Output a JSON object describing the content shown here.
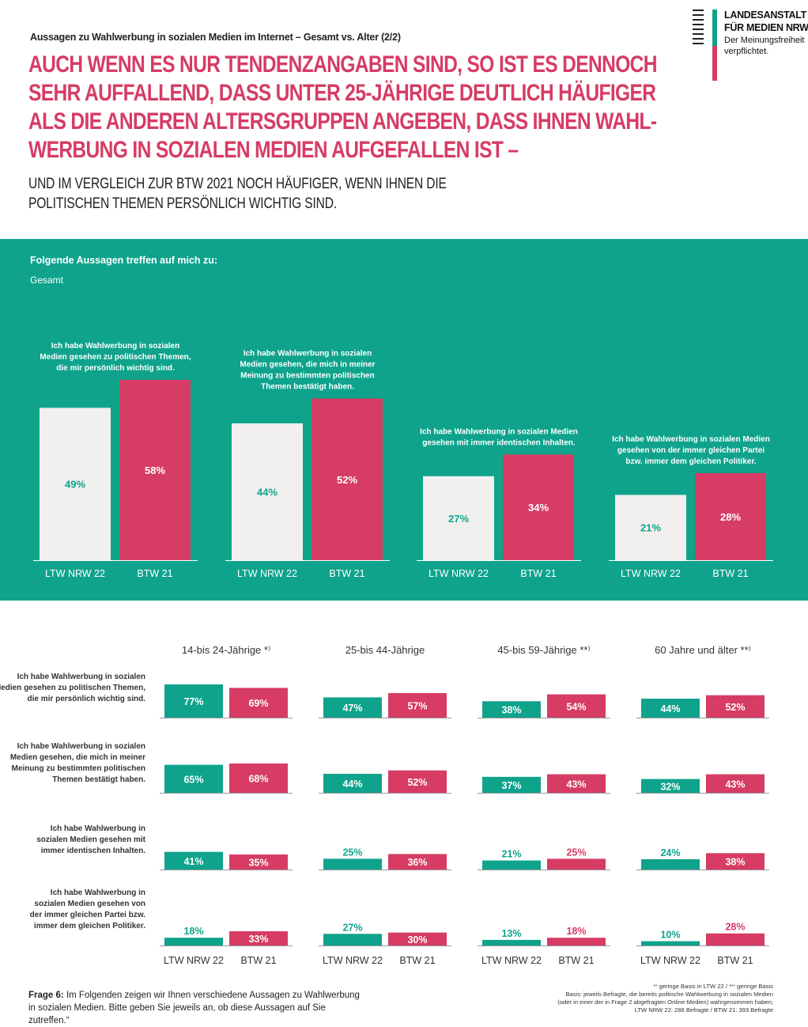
{
  "header": {
    "supertitle": "Aussagen zu Wahlwerbung in sozialen Medien im Internet – Gesamt vs. Alter (2/2)",
    "headline": "AUCH WENN ES NUR TENDENZANGABEN SIND, SO IST ES DENNOCH SEHR AUFFALLEND, DASS UNTER 25-JÄHRIGE DEUTLICH HÄUFIGER ALS DIE ANDEREN ALTERSGRUPPEN ANGEBEN, DASS IHNEN WAHL-WERBUNG IN SOZIALEN MEDIEN AUFGEFALLEN IST –",
    "subline": "UND IM VERGLEICH ZUR BTW 2021 NOCH HÄUFIGER, WENN IHNEN DIE POLITISCHEN THEMEN PERSÖNLICH WICHTIG SIND."
  },
  "logo": {
    "line1": "LANDESANSTALT",
    "line2": "FÜR MEDIEN NRW",
    "line3": "Der Meinungsfreiheit",
    "line4": "verpflichtet."
  },
  "colors": {
    "teal": "#0fa38c",
    "red": "#d63c64",
    "light": "#f1f0ee"
  },
  "panel": {
    "title": "Folgende Aussagen treffen auf mich zu:",
    "subtitle": "Gesamt"
  },
  "chart_data": [
    {
      "type": "bar",
      "title": "Gesamt",
      "series_names": [
        "LTW NRW 22",
        "BTW 21"
      ],
      "groups": [
        {
          "label": [
            "Ich habe Wahlwerbung in sozialen",
            "Medien gesehen zu politischen Themen,",
            "die mir persönlich wichtig sind."
          ],
          "values": [
            49,
            58
          ],
          "labels": [
            "49%",
            "58%"
          ]
        },
        {
          "label": [
            "Ich habe Wahlwerbung in sozialen",
            "Medien gesehen, die mich in meiner",
            "Meinung zu bestimmten politischen",
            "Themen bestätigt haben."
          ],
          "values": [
            44,
            52
          ],
          "labels": [
            "44%",
            "52%"
          ]
        },
        {
          "label": [
            "Ich habe Wahlwerbung in sozialen Medien",
            "gesehen mit immer identischen Inhalten."
          ],
          "values": [
            27,
            34
          ],
          "labels": [
            "27%",
            "34%"
          ]
        },
        {
          "label": [
            "Ich habe Wahlwerbung in sozialen Medien",
            "gesehen von der immer gleichen Partei",
            "bzw. immer dem gleichen Politiker."
          ],
          "values": [
            21,
            28
          ],
          "labels": [
            "21%",
            "28%"
          ]
        }
      ]
    },
    {
      "type": "bar",
      "title": "Alter",
      "series_names": [
        "LTW NRW 22",
        "BTW 21"
      ],
      "age_groups": [
        "14-bis 24-Jährige *⁾",
        "25-bis 44-Jährige",
        "45-bis 59-Jährige **⁾",
        "60 Jahre und älter **⁾"
      ],
      "rows": [
        {
          "label": [
            "Ich habe Wahlwerbung in sozialen",
            "Medien gesehen zu politischen Themen,",
            "die mir persönlich wichtig sind."
          ],
          "values": [
            [
              77,
              69
            ],
            [
              47,
              57
            ],
            [
              38,
              54
            ],
            [
              44,
              52
            ]
          ],
          "labels": [
            [
              "77%",
              "69%"
            ],
            [
              "47%",
              "57%"
            ],
            [
              "38%",
              "54%"
            ],
            [
              "44%",
              "52%"
            ]
          ]
        },
        {
          "label": [
            "Ich habe Wahlwerbung in sozialen",
            "Medien gesehen, die mich in meiner",
            "Meinung zu bestimmten politischen",
            "Themen bestätigt haben."
          ],
          "values": [
            [
              65,
              68
            ],
            [
              44,
              52
            ],
            [
              37,
              43
            ],
            [
              32,
              43
            ]
          ],
          "labels": [
            [
              "65%",
              "68%"
            ],
            [
              "44%",
              "52%"
            ],
            [
              "37%",
              "43%"
            ],
            [
              "32%",
              "43%"
            ]
          ]
        },
        {
          "label": [
            "Ich habe Wahlwerbung in",
            "sozialen Medien gesehen mit",
            "immer identischen Inhalten."
          ],
          "values": [
            [
              41,
              35
            ],
            [
              25,
              36
            ],
            [
              21,
              25
            ],
            [
              24,
              38
            ]
          ],
          "labels": [
            [
              "41%",
              "35%"
            ],
            [
              "25%",
              "36%"
            ],
            [
              "21%",
              "25%"
            ],
            [
              "24%",
              "38%"
            ]
          ]
        },
        {
          "label": [
            "Ich habe Wahlwerbung in",
            "sozialen Medien gesehen von",
            "der immer gleichen Partei bzw.",
            "immer dem gleichen Politiker."
          ],
          "values": [
            [
              18,
              33
            ],
            [
              27,
              30
            ],
            [
              13,
              18
            ],
            [
              10,
              28
            ]
          ],
          "labels": [
            [
              "18%",
              "33%"
            ],
            [
              "27%",
              "30%"
            ],
            [
              "13%",
              "18%"
            ],
            [
              "10%",
              "28%"
            ]
          ]
        }
      ]
    }
  ],
  "footer": {
    "question_bold": "Frage 6:",
    "question_text": "Im Folgenden zeigen wir Ihnen verschiedene Aussagen zu Wahlwerbung in sozialen Medien. Bitte geben Sie jeweils an, ob diese Aussagen auf Sie zutreffen.“",
    "notes": [
      "*⁾ geringe Basis in LTW 22 / **⁾ geringe Basis",
      "Basis: jeweils Befragte, die bereits politische Wahlwerbung in sozialen Medien",
      "(oder in einer der in Frage 2 abgefragten Online-Medien) wahrgenommen haben;",
      "LTW NRW 22: 286 Befragte / BTW 21: 393 Befragte"
    ]
  }
}
